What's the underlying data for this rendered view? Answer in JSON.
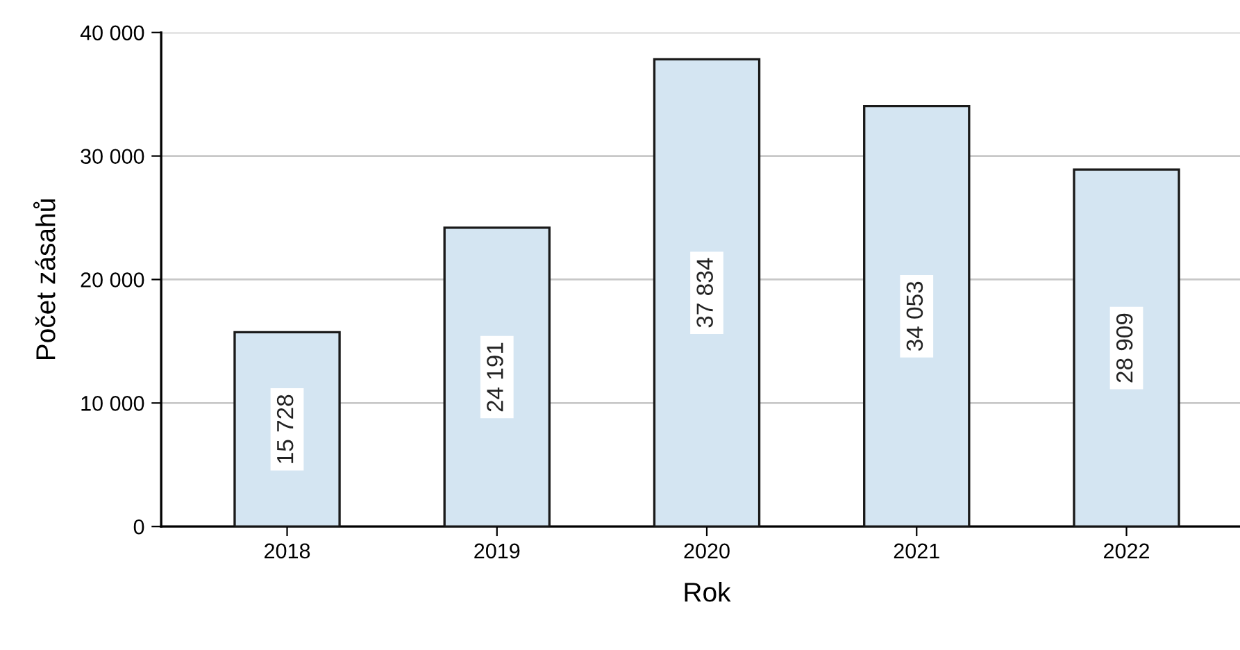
{
  "chart_data": {
    "type": "bar",
    "xlabel": "Rok",
    "ylabel": "Počet zásahů",
    "categories": [
      "2018",
      "2019",
      "2020",
      "2021",
      "2022"
    ],
    "values": [
      15728,
      24191,
      37834,
      34053,
      28909
    ],
    "value_labels": [
      "15 728",
      "24 191",
      "37 834",
      "34 053",
      "28 909"
    ],
    "color": "#d4e5f2",
    "ylim": [
      0,
      40000
    ],
    "yticks": [
      0,
      {
        "value": 10000,
        "label": "10 000"
      },
      {
        "value": 20000,
        "label": "20 000"
      },
      {
        "value": 30000,
        "label": "30 000"
      },
      {
        "value": 40000,
        "label": "40 000"
      }
    ],
    "grid": "y"
  }
}
